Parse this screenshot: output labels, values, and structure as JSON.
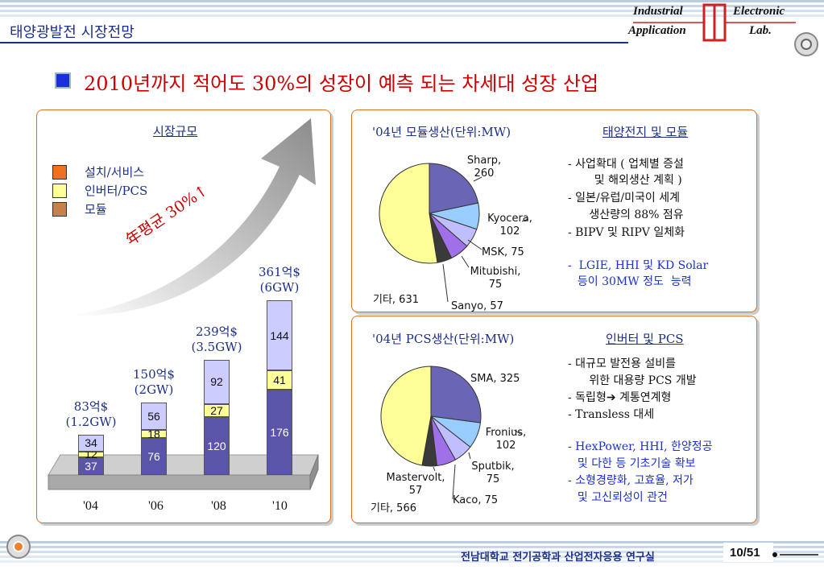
{
  "header": {
    "title": "태양광발전 시장전망",
    "lab_line1_left": "Industrial",
    "lab_line1_right": "Electronic",
    "lab_line2_left": "Application",
    "lab_line2_right": "Lab."
  },
  "headline": "2010년까지 적어도 30%의 성장이 예측 되는 차세대 성장 산업",
  "market_panel": {
    "title": "시장규모",
    "legend": [
      "설치/서비스",
      "인버터/PCS",
      "모듈"
    ],
    "growth_text": "年평균 30%↑",
    "colors": {
      "install": "#f07020",
      "inverter": "#ffff99",
      "module": "#c8804a",
      "module_bar": "#5a55a8",
      "bos_bar": "#ccccff"
    },
    "chart_data": {
      "type": "bar",
      "categories": [
        "'04",
        "'06",
        "'08",
        "'10"
      ],
      "series": [
        {
          "values": [
            37,
            76,
            120,
            176
          ]
        },
        {
          "values": [
            12,
            18,
            27,
            41
          ]
        },
        {
          "values": [
            34,
            56,
            92,
            144
          ]
        }
      ],
      "totals": [
        "83억$\n(1.2GW)",
        "150억$\n(2GW)",
        "239억$\n(3.5GW)",
        "361억$\n(6GW)"
      ]
    }
  },
  "module_panel": {
    "pie_title": "'04년 모듈생산(단위:MW)",
    "section_title": "태양전지 및 모듈",
    "chart_data": {
      "type": "pie",
      "labels": [
        "Sharp, 260",
        "Kyocera, 102",
        "MSK, 75",
        "Mitubishi, 75",
        "Sanyo, 57",
        "기타, 631"
      ],
      "values": [
        260,
        102,
        75,
        75,
        57,
        631
      ]
    },
    "slice_colors": [
      "#6a66b6",
      "#99ccff",
      "#bfbfff",
      "#a070e8",
      "#3a3a3a",
      "#ffff99"
    ],
    "bullets": [
      "- 사업확대 ( 업체별 증설",
      "    및 해외생산 계획 )",
      "- 일본/유럽/미국이 세계",
      "   생산량의 88% 점유",
      "- BIPV 및 RIPV 일체화"
    ],
    "blue_bullets": [
      "-  LGIE, HHI 및 KD Solar",
      "  등이 30MW 정도  능력"
    ]
  },
  "pcs_panel": {
    "pie_title": "'04년 PCS생산(단위:MW)",
    "section_title": "인버터 및 PCS",
    "chart_data": {
      "type": "pie",
      "labels": [
        "SMA, 325",
        "Fronius, 102",
        "Sputbik, 75",
        "Kaco, 75",
        "Mastervolt, 57",
        "기타, 566"
      ],
      "values": [
        325,
        102,
        75,
        75,
        57,
        566
      ]
    },
    "bullets": [
      "- 대규모 발전용 설비를",
      "   위한 대용량 PCS 개발",
      "- 독립형➔ 계통연계형",
      "- Transless 대세"
    ],
    "blue_bullets": [
      "- HexPower, HHI, 한양정공",
      "  및 다한 등 기초기술 확보",
      "- 소형경량화, 고효율, 저가",
      "  및 고신뢰성이 관건"
    ]
  },
  "footer": {
    "org": "전남대학교 전기공학과 산업전자응용 연구실",
    "page": "10/51"
  }
}
